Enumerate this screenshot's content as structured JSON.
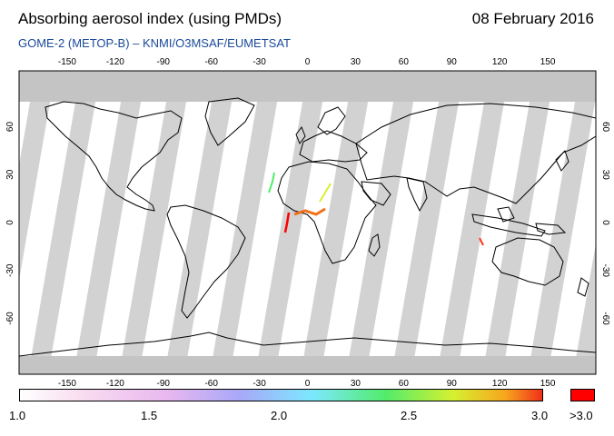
{
  "title": "Absorbing aerosol index (using PMDs)",
  "date": "08 February 2016",
  "subtitle": "GOME-2 (METOP-B)  –  KNMI/O3MSAF/EUMETSAT",
  "map": {
    "lon_ticks": [
      "-150",
      "-120",
      "-90",
      "-60",
      "-30",
      "0",
      "30",
      "60",
      "90",
      "120",
      "150"
    ],
    "lat_ticks": [
      "60",
      "30",
      "0",
      "-30",
      "-60"
    ],
    "colors": {
      "no_data": "#c4c4c4",
      "swath": "#d2d2d2",
      "coast": "#000000",
      "over_max": "#ff0000"
    }
  },
  "colorbar": {
    "labels": [
      "1.0",
      "1.5",
      "2.0",
      "2.5",
      "3.0"
    ],
    "over_label": ">3.0",
    "gradient_colors": [
      "#ffffff",
      "#f8dcf0",
      "#e9b8ef",
      "#a8a8f8",
      "#7ce8ff",
      "#52ec6a",
      "#d6f030",
      "#f7a51d",
      "#f0301a"
    ]
  }
}
